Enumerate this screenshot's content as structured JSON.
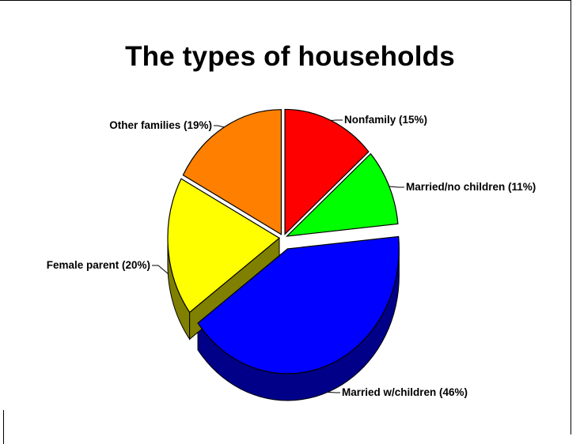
{
  "chart_data": {
    "type": "pie",
    "title": "The types of households",
    "slices": [
      {
        "label": "Nonfamily (15%)",
        "value": 15,
        "color": "#ff0000",
        "side_color": "#b00000"
      },
      {
        "label": "Married/no children (11%)",
        "value": 11,
        "color": "#00ff00",
        "side_color": "#008800"
      },
      {
        "label": "Married w/children (46%)",
        "value": 46,
        "color": "#0000ff",
        "side_color": "#000088"
      },
      {
        "label": "Female parent (20%)",
        "value": 20,
        "color": "#ffff00",
        "side_color": "#808000"
      },
      {
        "label": "Other families (19%)",
        "value": 19,
        "color": "#ff8000",
        "side_color": "#884400"
      }
    ],
    "exploded": true,
    "three_d": true
  }
}
